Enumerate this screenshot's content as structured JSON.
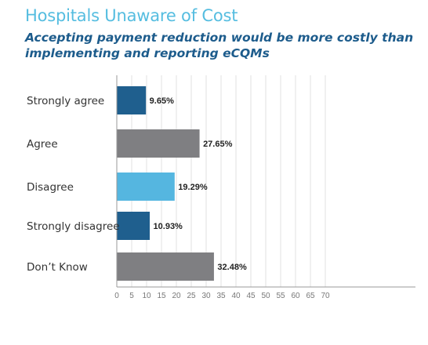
{
  "header": {
    "title": "Hospitals Unaware of Cost",
    "subtitle": "Accepting payment reduction would be more costly than implementing and reporting eCQMs"
  },
  "chart_data": {
    "type": "bar",
    "orientation": "horizontal",
    "title": "Hospitals Unaware of Cost",
    "subtitle": "Accepting payment reduction would be more costly than implementing and reporting eCQMs",
    "categories": [
      "Strongly agree",
      "Agree",
      "Disagree",
      "Strongly disagree",
      "Don’t Know"
    ],
    "values": [
      9.65,
      27.65,
      19.29,
      10.93,
      32.48
    ],
    "data_labels": [
      "9.65%",
      "27.65%",
      "19.29%",
      "10.93%",
      "32.48%"
    ],
    "bar_colors": [
      "#1f5f8e",
      "#7f7f82",
      "#55b6e0",
      "#1f5f8e",
      "#7f7f82"
    ],
    "xlim": [
      0,
      70
    ],
    "x_ticks": [
      0,
      5,
      10,
      15,
      20,
      25,
      30,
      35,
      40,
      45,
      50,
      55,
      60,
      65,
      70
    ],
    "xlabel": "",
    "ylabel": "",
    "grid": true,
    "legend": "none"
  }
}
